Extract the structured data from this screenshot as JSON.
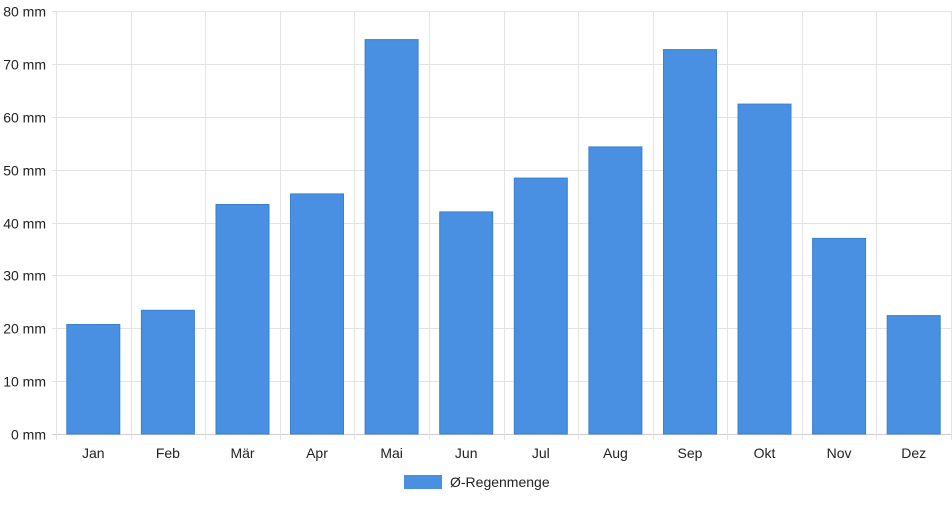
{
  "chart_data": {
    "type": "bar",
    "title": "",
    "xlabel": "",
    "ylabel": "",
    "categories": [
      "Jan",
      "Feb",
      "Mär",
      "Apr",
      "Mai",
      "Jun",
      "Jul",
      "Aug",
      "Sep",
      "Okt",
      "Nov",
      "Dez"
    ],
    "series": [
      {
        "name": "Ø-Regenmenge",
        "color": "#4a90e2",
        "values": [
          20.7,
          23.4,
          43.4,
          45.4,
          74.6,
          42.0,
          48.4,
          54.3,
          72.7,
          62.4,
          37.0,
          22.4
        ]
      }
    ],
    "ylim": [
      0,
      80
    ],
    "yticks": [
      0,
      10,
      20,
      30,
      40,
      50,
      60,
      70,
      80
    ],
    "ytick_labels": [
      "0 mm",
      "10 mm",
      "20 mm",
      "30 mm",
      "40 mm",
      "50 mm",
      "60 mm",
      "70 mm",
      "80 mm"
    ],
    "grid": true,
    "legend_position": "bottom-center"
  },
  "colors": {
    "bar": "#4a90e2",
    "grid": "#e3e3e3",
    "text": "#222222"
  }
}
